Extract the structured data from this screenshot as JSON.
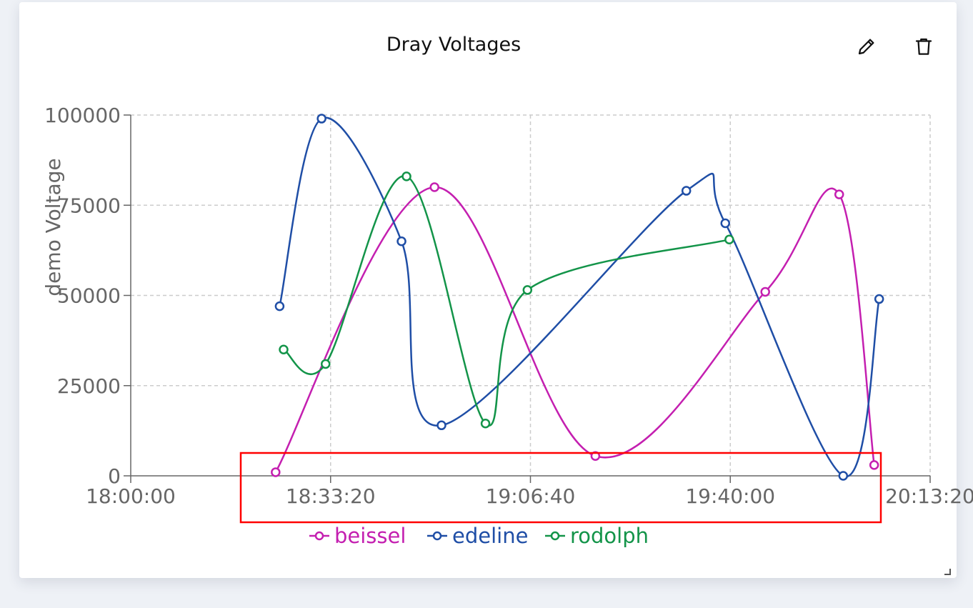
{
  "card": {
    "title": "Dray Voltages",
    "edit_icon": "pencil-icon",
    "delete_icon": "trash-icon"
  },
  "colors": {
    "grid": "#cccccc",
    "axis": "#666666",
    "highlight_box": "#ff0000"
  },
  "chart_data": {
    "type": "line",
    "curve": "smooth",
    "ylabel": "demo Voltage",
    "xlabel": "",
    "x_tick_labels": [
      "18:00:00",
      "18:33:20",
      "19:06:40",
      "19:40:00",
      "20:13:20"
    ],
    "xlim": [
      "18:00:00",
      "20:13:20"
    ],
    "y_ticks": [
      0,
      25000,
      50000,
      75000,
      100000
    ],
    "ylim": [
      0,
      100000
    ],
    "grid": true,
    "legend": "bottom",
    "series": [
      {
        "name": "beissel",
        "color": "#c41fb0",
        "points": [
          {
            "x": "18:24:10",
            "y": 1000
          },
          {
            "x": "18:50:40",
            "y": 80000
          },
          {
            "x": "19:17:30",
            "y": 5500
          },
          {
            "x": "19:45:50",
            "y": 51000
          },
          {
            "x": "19:58:10",
            "y": 78000
          },
          {
            "x": "20:04:00",
            "y": 3000
          }
        ]
      },
      {
        "name": "edeline",
        "color": "#1f4ea6",
        "points": [
          {
            "x": "18:24:50",
            "y": 47000
          },
          {
            "x": "18:31:50",
            "y": 99000
          },
          {
            "x": "18:45:10",
            "y": 65000
          },
          {
            "x": "18:51:50",
            "y": 14000
          },
          {
            "x": "19:32:40",
            "y": 79000
          },
          {
            "x": "19:39:10",
            "y": 70000
          },
          {
            "x": "19:58:50",
            "y": 0
          },
          {
            "x": "20:04:50",
            "y": 49000
          }
        ]
      },
      {
        "name": "rodolph",
        "color": "#139449",
        "points": [
          {
            "x": "18:25:30",
            "y": 35000
          },
          {
            "x": "18:32:30",
            "y": 31000
          },
          {
            "x": "18:46:00",
            "y": 83000
          },
          {
            "x": "18:59:10",
            "y": 14500
          },
          {
            "x": "19:06:10",
            "y": 51500
          },
          {
            "x": "19:39:50",
            "y": 65500
          }
        ]
      }
    ]
  }
}
